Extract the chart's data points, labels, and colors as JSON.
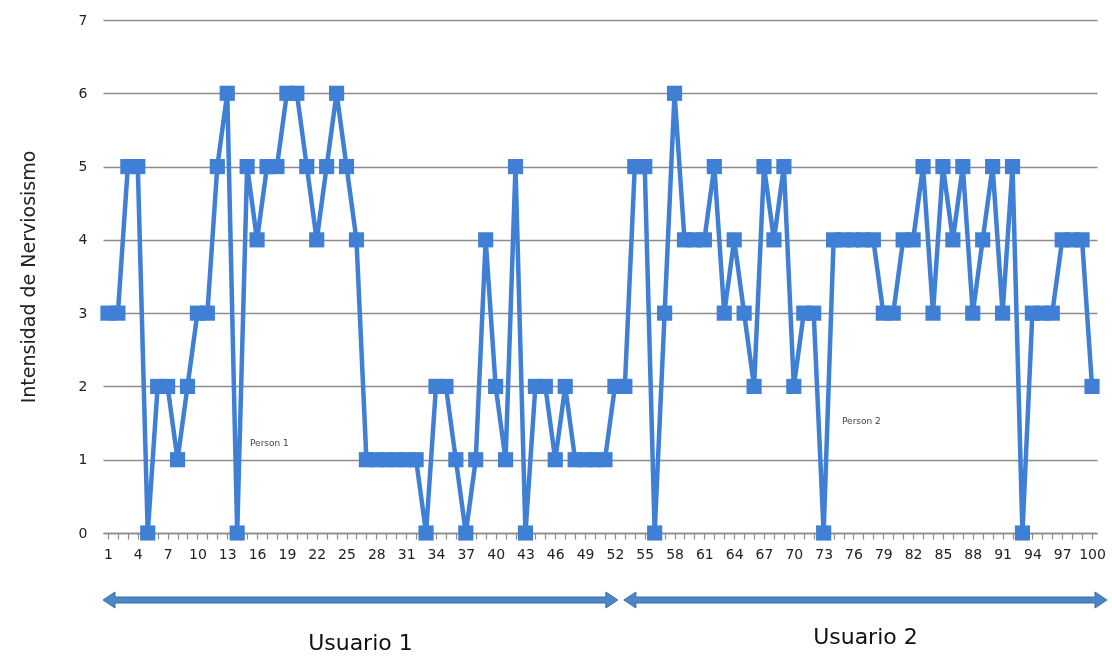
{
  "chart_data": {
    "type": "line",
    "ylabel": "Intensidad de Nerviosismo",
    "categories": [
      "1",
      null,
      null,
      "4",
      null,
      null,
      "7",
      null,
      null,
      "10",
      null,
      null,
      "13",
      null,
      null,
      "16",
      null,
      null,
      "19",
      null,
      null,
      "22",
      null,
      null,
      "25",
      null,
      null,
      "28",
      null,
      null,
      "31",
      null,
      null,
      "34",
      null,
      null,
      "37",
      null,
      null,
      "40",
      null,
      null,
      "43",
      null,
      null,
      "46",
      null,
      null,
      "49",
      null,
      null,
      "52",
      null,
      null,
      "55",
      null,
      null,
      "58",
      null,
      null,
      "61",
      null,
      null,
      "64",
      null,
      null,
      "67",
      null,
      null,
      "70",
      null,
      null,
      "73",
      null,
      null,
      "76",
      null,
      null,
      "79",
      null,
      null,
      "82",
      null,
      null,
      "85",
      null,
      null,
      "88",
      null,
      null,
      "91",
      null,
      null,
      "94",
      null,
      null,
      "97",
      null,
      null,
      "100"
    ],
    "values": [
      3,
      3,
      5,
      5,
      0,
      2,
      2,
      1,
      2,
      3,
      3,
      5,
      6,
      0,
      5,
      4,
      5,
      5,
      6,
      6,
      5,
      4,
      5,
      6,
      5,
      4,
      1,
      1,
      1,
      1,
      1,
      1,
      0,
      2,
      2,
      1,
      0,
      1,
      4,
      2,
      1,
      5,
      0,
      2,
      2,
      1,
      2,
      1,
      1,
      1,
      1,
      2,
      2,
      5,
      5,
      0,
      3,
      6,
      4,
      4,
      4,
      5,
      3,
      4,
      3,
      2,
      5,
      4,
      5,
      2,
      3,
      3,
      0,
      4,
      4,
      4,
      4,
      4,
      3,
      3,
      4,
      4,
      5,
      3,
      5,
      4,
      5,
      3,
      4,
      5,
      3,
      5,
      0,
      3,
      3,
      3,
      4,
      4,
      4,
      2
    ],
    "color": "#3f7fd6",
    "marker": "square",
    "line_style": "solid",
    "ylim": [
      0,
      7
    ],
    "yticks": [
      0,
      1,
      2,
      3,
      4,
      5,
      6,
      7
    ],
    "grid": "y",
    "annotations": [
      "Usuario 1",
      "Usuario 2",
      "Person 1",
      "Person 2"
    ]
  }
}
